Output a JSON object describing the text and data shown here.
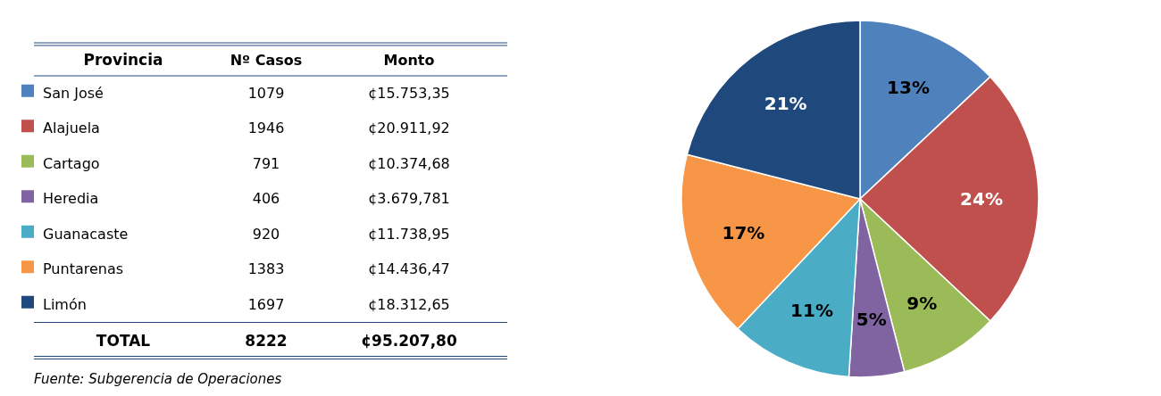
{
  "chart_data": [
    {
      "type": "other",
      "xlabel": "Provincia",
      "categories": [
        "San José",
        "Alajuela",
        "Cartago",
        "Heredia",
        "Guanacaste",
        "Puntarenas",
        "Limón"
      ],
      "colors": [
        "#4f81bd",
        "#c0504d",
        "#9bbb59",
        "#8064a2",
        "#4bacc6",
        "#f79646",
        "#1f497d"
      ],
      "series": [
        {
          "name": "Nº Casos",
          "values": [
            1079,
            1946,
            791,
            406,
            920,
            1383,
            1697
          ]
        },
        {
          "name": "Monto",
          "values": [
            15753.35,
            20911.92,
            10374.68,
            3679.781,
            11738.95,
            14436.47,
            18312.65
          ],
          "value_labels": [
            "¢15.753,35",
            "¢20.911,92",
            "¢10.374,68",
            "¢3.679,781",
            "¢11.738,95",
            "¢14.436,47",
            "¢18.312,65"
          ]
        }
      ],
      "data_labels": true,
      "totals": [
        "TOTAL",
        "8222",
        "¢95.207,80"
      ],
      "annotations": [
        "Fuente: Subgerencia de Operaciones"
      ]
    },
    {
      "type": "pie",
      "categories": [
        null,
        null,
        null,
        null,
        null,
        null,
        null
      ],
      "values": [
        13,
        24,
        9,
        5,
        11,
        17,
        21
      ],
      "value_labels": [
        "13%",
        "24%",
        "9%",
        "5%",
        "11%",
        "17%",
        "21%"
      ],
      "colors": [
        "#4f81bd",
        "#c0504d",
        "#9bbb59",
        "#8064a2",
        "#4bacc6",
        "#f79646",
        "#1f497d"
      ]
    }
  ]
}
